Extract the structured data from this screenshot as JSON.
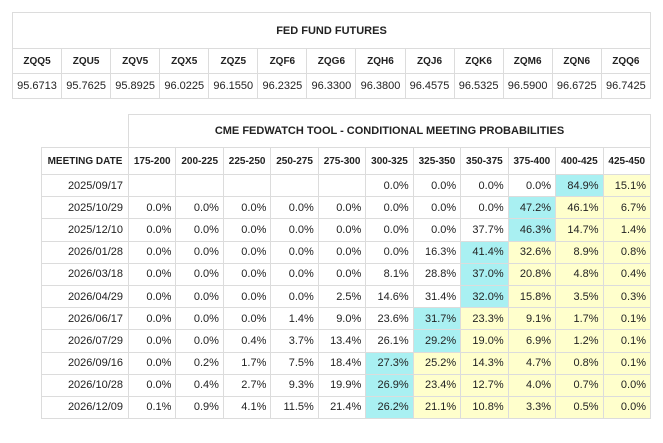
{
  "futures": {
    "title": "FED FUND FUTURES",
    "contracts": [
      "ZQQ5",
      "ZQU5",
      "ZQV5",
      "ZQX5",
      "ZQZ5",
      "ZQF6",
      "ZQG6",
      "ZQH6",
      "ZQJ6",
      "ZQK6",
      "ZQM6",
      "ZQN6",
      "ZQQ6"
    ],
    "prices": [
      "95.6713",
      "95.7625",
      "95.8925",
      "96.0225",
      "96.1550",
      "96.2325",
      "96.3300",
      "96.3800",
      "96.4575",
      "96.5325",
      "96.5900",
      "96.6725",
      "96.7425"
    ]
  },
  "fedwatch": {
    "title": "CME FEDWATCH TOOL - CONDITIONAL MEETING PROBABILITIES",
    "date_header": "MEETING DATE",
    "ranges": [
      "175-200",
      "200-225",
      "225-250",
      "250-275",
      "275-300",
      "300-325",
      "325-350",
      "350-375",
      "375-400",
      "400-425",
      "425-450"
    ],
    "rows": [
      {
        "date": "2025/09/17",
        "values": [
          "",
          "",
          "",
          "",
          "",
          "0.0%",
          "0.0%",
          "0.0%",
          "0.0%",
          "84.9%",
          "15.1%"
        ],
        "shading": [
          "",
          "",
          "",
          "",
          "",
          "",
          "",
          "",
          "",
          "c",
          "y"
        ]
      },
      {
        "date": "2025/10/29",
        "values": [
          "0.0%",
          "0.0%",
          "0.0%",
          "0.0%",
          "0.0%",
          "0.0%",
          "0.0%",
          "0.0%",
          "47.2%",
          "46.1%",
          "6.7%"
        ],
        "shading": [
          "",
          "",
          "",
          "",
          "",
          "",
          "",
          "",
          "c",
          "y",
          "y"
        ]
      },
      {
        "date": "2025/12/10",
        "values": [
          "0.0%",
          "0.0%",
          "0.0%",
          "0.0%",
          "0.0%",
          "0.0%",
          "0.0%",
          "37.7%",
          "46.3%",
          "14.7%",
          "1.4%"
        ],
        "shading": [
          "",
          "",
          "",
          "",
          "",
          "",
          "",
          "",
          "c",
          "y",
          "y"
        ]
      },
      {
        "date": "2026/01/28",
        "values": [
          "0.0%",
          "0.0%",
          "0.0%",
          "0.0%",
          "0.0%",
          "0.0%",
          "16.3%",
          "41.4%",
          "32.6%",
          "8.9%",
          "0.8%"
        ],
        "shading": [
          "",
          "",
          "",
          "",
          "",
          "",
          "",
          "c",
          "y",
          "y",
          "y"
        ]
      },
      {
        "date": "2026/03/18",
        "values": [
          "0.0%",
          "0.0%",
          "0.0%",
          "0.0%",
          "0.0%",
          "8.1%",
          "28.8%",
          "37.0%",
          "20.8%",
          "4.8%",
          "0.4%"
        ],
        "shading": [
          "",
          "",
          "",
          "",
          "",
          "",
          "",
          "c",
          "y",
          "y",
          "y"
        ]
      },
      {
        "date": "2026/04/29",
        "values": [
          "0.0%",
          "0.0%",
          "0.0%",
          "0.0%",
          "2.5%",
          "14.6%",
          "31.4%",
          "32.0%",
          "15.8%",
          "3.5%",
          "0.3%"
        ],
        "shading": [
          "",
          "",
          "",
          "",
          "",
          "",
          "",
          "c",
          "y",
          "y",
          "y"
        ]
      },
      {
        "date": "2026/06/17",
        "values": [
          "0.0%",
          "0.0%",
          "0.0%",
          "1.4%",
          "9.0%",
          "23.6%",
          "31.7%",
          "23.3%",
          "9.1%",
          "1.7%",
          "0.1%"
        ],
        "shading": [
          "",
          "",
          "",
          "",
          "",
          "",
          "c",
          "y",
          "y",
          "y",
          "y"
        ]
      },
      {
        "date": "2026/07/29",
        "values": [
          "0.0%",
          "0.0%",
          "0.4%",
          "3.7%",
          "13.4%",
          "26.1%",
          "29.2%",
          "19.0%",
          "6.9%",
          "1.2%",
          "0.1%"
        ],
        "shading": [
          "",
          "",
          "",
          "",
          "",
          "",
          "c",
          "y",
          "y",
          "y",
          "y"
        ]
      },
      {
        "date": "2026/09/16",
        "values": [
          "0.0%",
          "0.2%",
          "1.7%",
          "7.5%",
          "18.4%",
          "27.3%",
          "25.2%",
          "14.3%",
          "4.7%",
          "0.8%",
          "0.1%"
        ],
        "shading": [
          "",
          "",
          "",
          "",
          "",
          "c",
          "y",
          "y",
          "y",
          "y",
          "y"
        ]
      },
      {
        "date": "2026/10/28",
        "values": [
          "0.0%",
          "0.4%",
          "2.7%",
          "9.3%",
          "19.9%",
          "26.9%",
          "23.4%",
          "12.7%",
          "4.0%",
          "0.7%",
          "0.0%"
        ],
        "shading": [
          "",
          "",
          "",
          "",
          "",
          "c",
          "y",
          "y",
          "y",
          "y",
          "y"
        ]
      },
      {
        "date": "2026/12/09",
        "values": [
          "0.1%",
          "0.9%",
          "4.1%",
          "11.5%",
          "21.4%",
          "26.2%",
          "21.1%",
          "10.8%",
          "3.3%",
          "0.5%",
          "0.0%"
        ],
        "shading": [
          "",
          "",
          "",
          "",
          "",
          "c",
          "y",
          "y",
          "y",
          "y",
          "y"
        ]
      }
    ]
  }
}
